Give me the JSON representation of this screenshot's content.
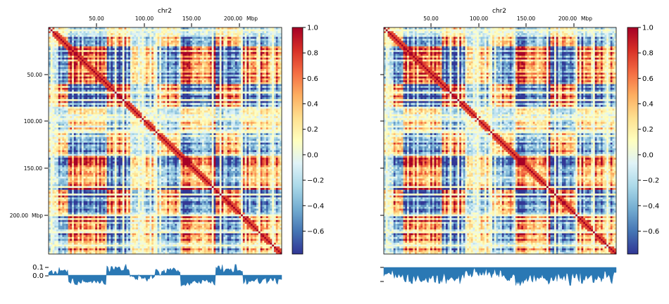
{
  "chart_data": [
    {
      "type": "heatmap",
      "title": "chr2",
      "x_ticks": [
        "50.00",
        "100.00",
        "150.00",
        "200.00"
      ],
      "x_unit": "Mbp",
      "y_ticks": [
        "50.00",
        "100.00",
        "150.00",
        "200.00"
      ],
      "y_unit": "Mbp",
      "range_mbp": [
        0,
        243
      ],
      "colorbar": {
        "min": -0.78,
        "max": 1.0,
        "ticks": [
          "1.0",
          "0.8",
          "0.6",
          "0.4",
          "0.2",
          "0.0",
          "−0.2",
          "−0.4",
          "−0.6"
        ],
        "tick_values": [
          1.0,
          0.8,
          0.6,
          0.4,
          0.2,
          0.0,
          -0.2,
          -0.4,
          -0.6
        ],
        "colormap": "RdYlBu_r"
      },
      "notable_blocks_mbp": [
        [
          0,
          20
        ],
        [
          20,
          60
        ],
        [
          60,
          85
        ],
        [
          138,
          175
        ],
        [
          175,
          243
        ]
      ],
      "track": {
        "type": "area",
        "y_ticks": [
          "0.1",
          "0.0"
        ],
        "y_tick_values": [
          0.1,
          0.0
        ],
        "ylim": [
          -0.12,
          0.15
        ],
        "color": "#2a78b4"
      }
    },
    {
      "type": "heatmap",
      "title": "chr2",
      "x_ticks": [
        "50.00",
        "100.00",
        "150.00",
        "200.00"
      ],
      "x_unit": "Mbp",
      "range_mbp": [
        0,
        243
      ],
      "colorbar": {
        "min": -0.78,
        "max": 1.0,
        "ticks": [
          "1.0",
          "0.8",
          "0.6",
          "0.4",
          "0.2",
          "0.0",
          "−0.2",
          "−0.4",
          "−0.6"
        ],
        "tick_values": [
          1.0,
          0.8,
          0.6,
          0.4,
          0.2,
          0.0,
          -0.2,
          -0.4,
          -0.6
        ],
        "colormap": "RdYlBu_r"
      },
      "track": {
        "type": "area",
        "y_ticks": [],
        "color": "#2a78b4"
      }
    }
  ]
}
